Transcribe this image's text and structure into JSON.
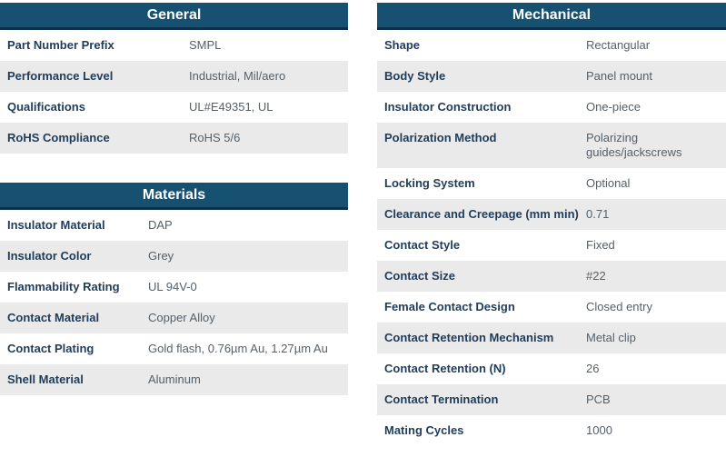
{
  "colors": {
    "header_bg": "#165172",
    "header_border": "#0C3049",
    "label_text": "#1E3C5B",
    "value_text": "#55606A",
    "row_stripe": "#EAEAEA",
    "row_bg": "#FFFFFF"
  },
  "tables": {
    "general": {
      "title": "General",
      "rows": [
        {
          "label": "Part Number Prefix",
          "value": "SMPL"
        },
        {
          "label": "Performance Level",
          "value": "Industrial, Mil/aero"
        },
        {
          "label": "Qualifications",
          "value": "UL#E49351, UL"
        },
        {
          "label": "RoHS Compliance",
          "value": "RoHS 5/6"
        }
      ]
    },
    "materials": {
      "title": "Materials",
      "rows": [
        {
          "label": "Insulator Material",
          "value": "DAP"
        },
        {
          "label": "Insulator Color",
          "value": "Grey"
        },
        {
          "label": "Flammability Rating",
          "value": "UL 94V-0"
        },
        {
          "label": "Contact Material",
          "value": "Copper Alloy"
        },
        {
          "label": "Contact Plating",
          "value": "Gold flash, 0.76µm Au, 1.27µm Au"
        },
        {
          "label": "Shell Material",
          "value": "Aluminum"
        }
      ]
    },
    "mechanical": {
      "title": "Mechanical",
      "rows": [
        {
          "label": "Shape",
          "value": "Rectangular"
        },
        {
          "label": "Body Style",
          "value": "Panel mount"
        },
        {
          "label": "Insulator Construction",
          "value": "One-piece"
        },
        {
          "label": "Polarization Method",
          "value": "Polarizing guides/jackscrews"
        },
        {
          "label": "Locking System",
          "value": "Optional"
        },
        {
          "label": "Clearance and Creepage (mm min)",
          "value": "0.71"
        },
        {
          "label": "Contact Style",
          "value": "Fixed"
        },
        {
          "label": "Contact Size",
          "value": "#22"
        },
        {
          "label": "Female Contact Design",
          "value": "Closed entry"
        },
        {
          "label": "Contact Retention Mechanism",
          "value": "Metal clip"
        },
        {
          "label": "Contact Retention (N)",
          "value": "26"
        },
        {
          "label": "Contact Termination",
          "value": "PCB"
        },
        {
          "label": "Mating Cycles",
          "value": "1000"
        }
      ]
    }
  }
}
